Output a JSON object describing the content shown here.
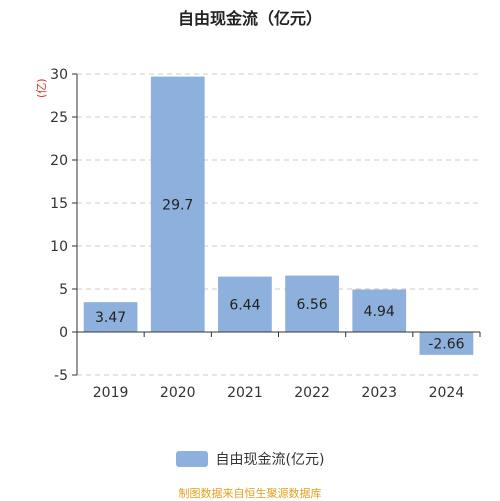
{
  "chart_data": {
    "type": "bar",
    "title": "自由现金流（亿元）",
    "ylabel": "(亿)",
    "categories": [
      "2019",
      "2020",
      "2021",
      "2022",
      "2023",
      "2024"
    ],
    "series": [
      {
        "name": "自由现金流(亿元)",
        "values": [
          3.47,
          29.7,
          6.44,
          6.56,
          4.94,
          -2.66
        ]
      }
    ],
    "value_labels": [
      "3.47",
      "29.7",
      "6.44",
      "6.56",
      "4.94",
      "-2.66"
    ],
    "ylim": [
      -5,
      30
    ],
    "yticks": [
      -5,
      0,
      5,
      10,
      15,
      20,
      25,
      30
    ],
    "ytick_labels": [
      "-5",
      "0",
      "5",
      "10",
      "15",
      "20",
      "25",
      "30"
    ],
    "grid": true,
    "legend_position": "bottom-center",
    "colors": {
      "bar": "#8eb0dc",
      "grid": "#cccccc",
      "axis": "#333333",
      "ylabel": "#e03020",
      "source": "#e0a020"
    }
  },
  "source_text": "制图数据来自恒生聚源数据库"
}
